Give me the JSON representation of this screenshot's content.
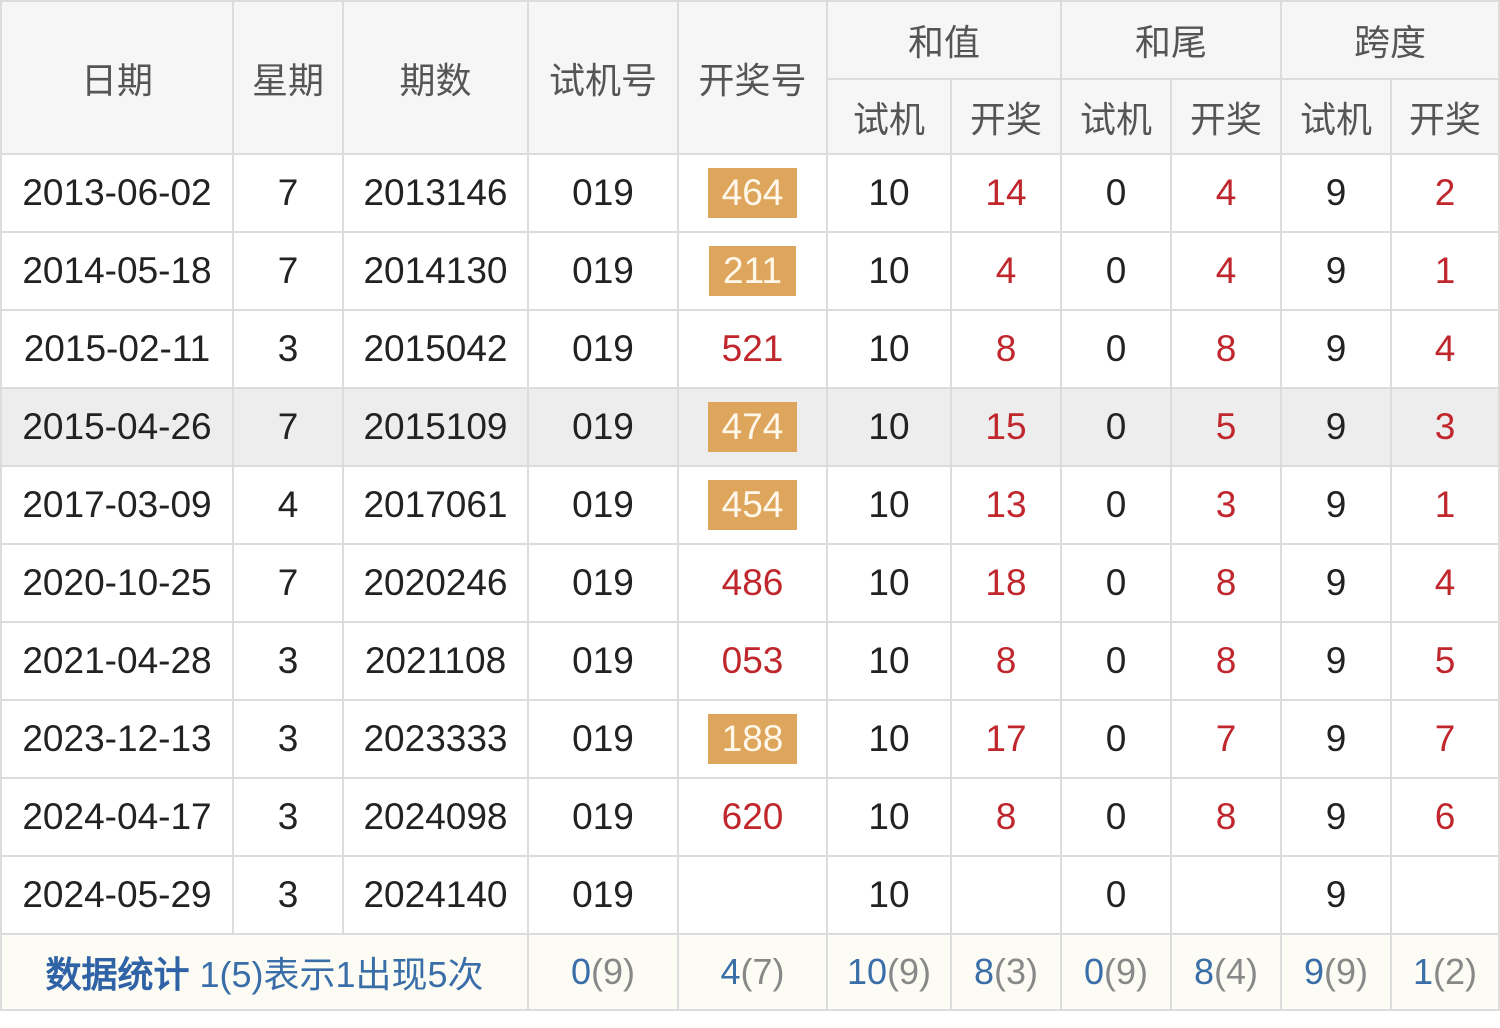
{
  "header": {
    "date": "日期",
    "weekday": "星期",
    "issue": "期数",
    "trial_no": "试机号",
    "draw_no": "开奖号",
    "sum": "和值",
    "sum_tail": "和尾",
    "span": "跨度",
    "sub_trial": "试机",
    "sub_draw": "开奖"
  },
  "rows": [
    {
      "date": "2013-06-02",
      "weekday": "7",
      "issue": "2013146",
      "trial": "019",
      "draw": "464",
      "draw_highlight": true,
      "sum_trial": "10",
      "sum_draw": "14",
      "tail_trial": "0",
      "tail_draw": "4",
      "span_trial": "9",
      "span_draw": "2"
    },
    {
      "date": "2014-05-18",
      "weekday": "7",
      "issue": "2014130",
      "trial": "019",
      "draw": "211",
      "draw_highlight": true,
      "sum_trial": "10",
      "sum_draw": "4",
      "tail_trial": "0",
      "tail_draw": "4",
      "span_trial": "9",
      "span_draw": "1"
    },
    {
      "date": "2015-02-11",
      "weekday": "3",
      "issue": "2015042",
      "trial": "019",
      "draw": "521",
      "draw_highlight": false,
      "sum_trial": "10",
      "sum_draw": "8",
      "tail_trial": "0",
      "tail_draw": "8",
      "span_trial": "9",
      "span_draw": "4"
    },
    {
      "date": "2015-04-26",
      "weekday": "7",
      "issue": "2015109",
      "trial": "019",
      "draw": "474",
      "draw_highlight": true,
      "sum_trial": "10",
      "sum_draw": "15",
      "tail_trial": "0",
      "tail_draw": "5",
      "span_trial": "9",
      "span_draw": "3",
      "row_highlight": true
    },
    {
      "date": "2017-03-09",
      "weekday": "4",
      "issue": "2017061",
      "trial": "019",
      "draw": "454",
      "draw_highlight": true,
      "sum_trial": "10",
      "sum_draw": "13",
      "tail_trial": "0",
      "tail_draw": "3",
      "span_trial": "9",
      "span_draw": "1"
    },
    {
      "date": "2020-10-25",
      "weekday": "7",
      "issue": "2020246",
      "trial": "019",
      "draw": "486",
      "draw_highlight": false,
      "sum_trial": "10",
      "sum_draw": "18",
      "tail_trial": "0",
      "tail_draw": "8",
      "span_trial": "9",
      "span_draw": "4"
    },
    {
      "date": "2021-04-28",
      "weekday": "3",
      "issue": "2021108",
      "trial": "019",
      "draw": "053",
      "draw_highlight": false,
      "sum_trial": "10",
      "sum_draw": "8",
      "tail_trial": "0",
      "tail_draw": "8",
      "span_trial": "9",
      "span_draw": "5"
    },
    {
      "date": "2023-12-13",
      "weekday": "3",
      "issue": "2023333",
      "trial": "019",
      "draw": "188",
      "draw_highlight": true,
      "sum_trial": "10",
      "sum_draw": "17",
      "tail_trial": "0",
      "tail_draw": "7",
      "span_trial": "9",
      "span_draw": "7"
    },
    {
      "date": "2024-04-17",
      "weekday": "3",
      "issue": "2024098",
      "trial": "019",
      "draw": "620",
      "draw_highlight": false,
      "sum_trial": "10",
      "sum_draw": "8",
      "tail_trial": "0",
      "tail_draw": "8",
      "span_trial": "9",
      "span_draw": "6"
    },
    {
      "date": "2024-05-29",
      "weekday": "3",
      "issue": "2024140",
      "trial": "019",
      "draw": "",
      "draw_highlight": false,
      "sum_trial": "10",
      "sum_draw": "",
      "tail_trial": "0",
      "tail_draw": "",
      "span_trial": "9",
      "span_draw": ""
    }
  ],
  "footer": {
    "label": "数据统计",
    "note": "1(5)表示1出现5次",
    "stats": [
      {
        "value": "0",
        "count": "(9)"
      },
      {
        "value": "4",
        "count": "(7)"
      },
      {
        "value": "10",
        "count": "(9)"
      },
      {
        "value": "8",
        "count": "(3)"
      },
      {
        "value": "0",
        "count": "(9)"
      },
      {
        "value": "8",
        "count": "(4)"
      },
      {
        "value": "9",
        "count": "(9)"
      },
      {
        "value": "1",
        "count": "(2)"
      }
    ]
  },
  "colors": {
    "highlight_ball": "#dea65c",
    "draw_text": "#c0272d",
    "footer_text": "#3a6ea8",
    "row_highlight": "#ededed"
  }
}
